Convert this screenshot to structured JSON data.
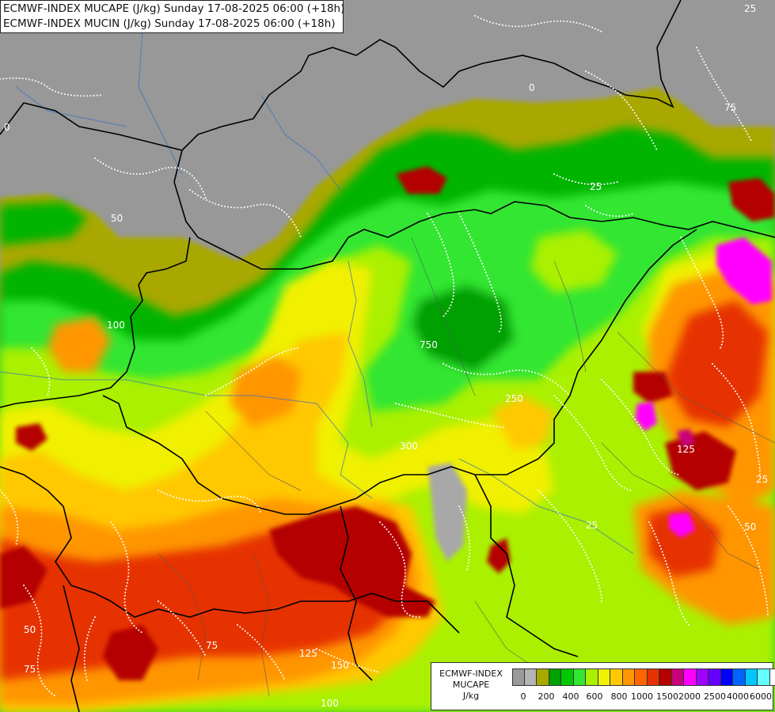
{
  "header": {
    "line1": "ECMWF-INDEX MUCAPE (J/kg) Sunday 17-08-2025 06:00 (+18h)",
    "line2": "ECMWF-INDEX MUCIN (J/kg) Sunday 17-08-2025 06:00 (+18h)"
  },
  "legend": {
    "title_line1": "ECMWF-INDEX",
    "title_line2": "MUCAPE",
    "title_line3": "J/kg",
    "colors": [
      "#9a9a9a",
      "#b4b4b4",
      "#a8a800",
      "#00a000",
      "#00c800",
      "#32e632",
      "#aaf000",
      "#f0f000",
      "#ffc800",
      "#ff9600",
      "#ff6400",
      "#e63200",
      "#b40000",
      "#c8007a",
      "#ff00ff",
      "#a000ff",
      "#6400ff",
      "#0000ff",
      "#0064ff",
      "#00c8ff",
      "#64ffff",
      "#ffffff"
    ],
    "ticks": [
      "0",
      "200",
      "400",
      "600",
      "800",
      "1000",
      "1500",
      "2000",
      "2500",
      "4000",
      "6000"
    ]
  },
  "contour_labels": [
    "0",
    "25",
    "50",
    "75",
    "100",
    "125",
    "150",
    "250",
    "300",
    "750"
  ]
}
